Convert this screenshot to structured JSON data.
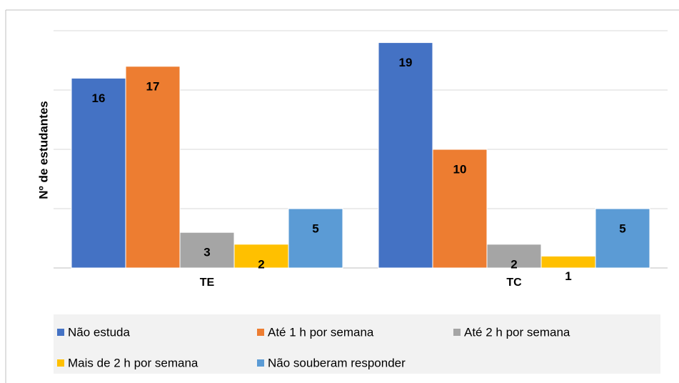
{
  "chart_data": {
    "type": "bar",
    "y_label": "Nº de estudantes",
    "categories": [
      "TE",
      "TC"
    ],
    "series": [
      {
        "name": "Não estuda",
        "color": "#4472c4",
        "values": [
          16,
          19
        ]
      },
      {
        "name": "Até 1 h por semana",
        "color": "#ed7d31",
        "values": [
          17,
          10
        ]
      },
      {
        "name": "Até 2 h por semana",
        "color": "#a5a5a5",
        "values": [
          3,
          2
        ]
      },
      {
        "name": "Mais de 2 h por semana",
        "color": "#ffc000",
        "values": [
          2,
          1
        ]
      },
      {
        "name": "Não souberam responder",
        "color": "#5b9bd5",
        "values": [
          5,
          5
        ]
      }
    ],
    "ylim": [
      0,
      20
    ],
    "yticks": [
      0,
      5,
      10,
      15,
      20
    ],
    "grid": true,
    "legend": "bottom"
  }
}
